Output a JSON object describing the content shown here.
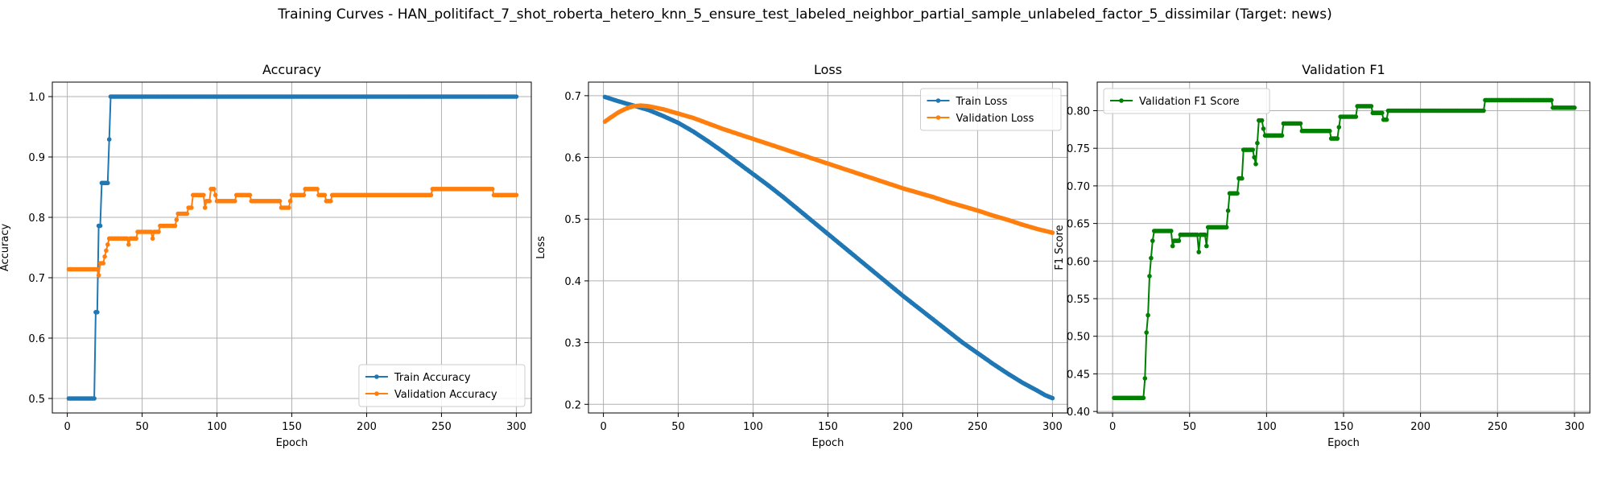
{
  "suptitle": "Training Curves - HAN_politifact_7_shot_roberta_hetero_knn_5_ensure_test_labeled_neighbor_partial_sample_unlabeled_factor_5_dissimilar (Target: news)",
  "chart_data": [
    {
      "type": "line",
      "title": "Accuracy",
      "xlabel": "Epoch",
      "ylabel": "Accuracy",
      "xlim": [
        -10,
        310
      ],
      "ylim": [
        0.476,
        1.024
      ],
      "xticks": [
        0,
        50,
        100,
        150,
        200,
        250,
        300
      ],
      "yticks": [
        0.5,
        0.6,
        0.7,
        0.8,
        0.9,
        1.0
      ],
      "grid": true,
      "legend": "lower-right",
      "series": [
        {
          "name": "Train Accuracy",
          "color": "#1f77b4",
          "points": [
            [
              1,
              0.5
            ],
            [
              18,
              0.5
            ],
            [
              19,
              0.643
            ],
            [
              20,
              0.643
            ],
            [
              21,
              0.786
            ],
            [
              22,
              0.786
            ],
            [
              23,
              0.857
            ],
            [
              27,
              0.857
            ],
            [
              28,
              0.929
            ],
            [
              29,
              1.0
            ],
            [
              300,
              1.0
            ]
          ]
        },
        {
          "name": "Validation Accuracy",
          "color": "#ff7f0e",
          "points": [
            [
              1,
              0.714
            ],
            [
              19,
              0.714
            ],
            [
              20,
              0.714
            ],
            [
              21,
              0.704
            ],
            [
              22,
              0.724
            ],
            [
              24,
              0.724
            ],
            [
              25,
              0.735
            ],
            [
              26,
              0.745
            ],
            [
              27,
              0.755
            ],
            [
              28,
              0.765
            ],
            [
              40,
              0.765
            ],
            [
              41,
              0.755
            ],
            [
              42,
              0.765
            ],
            [
              46,
              0.765
            ],
            [
              47,
              0.776
            ],
            [
              56,
              0.776
            ],
            [
              57,
              0.765
            ],
            [
              58,
              0.776
            ],
            [
              61,
              0.776
            ],
            [
              62,
              0.786
            ],
            [
              72,
              0.786
            ],
            [
              73,
              0.796
            ],
            [
              74,
              0.806
            ],
            [
              80,
              0.806
            ],
            [
              81,
              0.816
            ],
            [
              83,
              0.816
            ],
            [
              84,
              0.837
            ],
            [
              91,
              0.837
            ],
            [
              92,
              0.816
            ],
            [
              93,
              0.827
            ],
            [
              95,
              0.827
            ],
            [
              96,
              0.847
            ],
            [
              98,
              0.847
            ],
            [
              99,
              0.837
            ],
            [
              100,
              0.827
            ],
            [
              112,
              0.827
            ],
            [
              113,
              0.837
            ],
            [
              122,
              0.837
            ],
            [
              123,
              0.827
            ],
            [
              142,
              0.827
            ],
            [
              143,
              0.816
            ],
            [
              148,
              0.816
            ],
            [
              149,
              0.827
            ],
            [
              150,
              0.837
            ],
            [
              158,
              0.837
            ],
            [
              159,
              0.847
            ],
            [
              167,
              0.847
            ],
            [
              168,
              0.837
            ],
            [
              172,
              0.837
            ],
            [
              173,
              0.827
            ],
            [
              176,
              0.827
            ],
            [
              177,
              0.837
            ],
            [
              243,
              0.837
            ],
            [
              244,
              0.847
            ],
            [
              284,
              0.847
            ],
            [
              285,
              0.837
            ],
            [
              300,
              0.837
            ]
          ]
        }
      ]
    },
    {
      "type": "line",
      "title": "Loss",
      "xlabel": "Epoch",
      "ylabel": "Loss",
      "xlim": [
        -10,
        310
      ],
      "ylim": [
        0.186,
        0.722
      ],
      "xticks": [
        0,
        50,
        100,
        150,
        200,
        250,
        300
      ],
      "yticks": [
        0.2,
        0.3,
        0.4,
        0.5,
        0.6,
        0.7
      ],
      "grid": true,
      "legend": "top-right",
      "series": [
        {
          "name": "Train Loss",
          "color": "#1f77b4",
          "points": [
            [
              1,
              0.698
            ],
            [
              10,
              0.691
            ],
            [
              20,
              0.684
            ],
            [
              30,
              0.677
            ],
            [
              40,
              0.667
            ],
            [
              50,
              0.656
            ],
            [
              60,
              0.642
            ],
            [
              70,
              0.626
            ],
            [
              80,
              0.609
            ],
            [
              90,
              0.591
            ],
            [
              100,
              0.573
            ],
            [
              110,
              0.555
            ],
            [
              120,
              0.536
            ],
            [
              130,
              0.516
            ],
            [
              140,
              0.496
            ],
            [
              150,
              0.476
            ],
            [
              160,
              0.456
            ],
            [
              170,
              0.436
            ],
            [
              180,
              0.416
            ],
            [
              190,
              0.396
            ],
            [
              200,
              0.376
            ],
            [
              210,
              0.357
            ],
            [
              220,
              0.338
            ],
            [
              230,
              0.319
            ],
            [
              240,
              0.3
            ],
            [
              250,
              0.283
            ],
            [
              260,
              0.266
            ],
            [
              270,
              0.25
            ],
            [
              280,
              0.235
            ],
            [
              290,
              0.222
            ],
            [
              295,
              0.215
            ],
            [
              300,
              0.21
            ]
          ]
        },
        {
          "name": "Validation Loss",
          "color": "#ff7f0e",
          "points": [
            [
              1,
              0.658
            ],
            [
              5,
              0.665
            ],
            [
              10,
              0.673
            ],
            [
              15,
              0.679
            ],
            [
              20,
              0.683
            ],
            [
              25,
              0.684
            ],
            [
              30,
              0.683
            ],
            [
              40,
              0.678
            ],
            [
              50,
              0.671
            ],
            [
              60,
              0.664
            ],
            [
              70,
              0.655
            ],
            [
              80,
              0.646
            ],
            [
              90,
              0.638
            ],
            [
              100,
              0.63
            ],
            [
              110,
              0.622
            ],
            [
              120,
              0.614
            ],
            [
              130,
              0.606
            ],
            [
              140,
              0.598
            ],
            [
              150,
              0.59
            ],
            [
              160,
              0.582
            ],
            [
              170,
              0.574
            ],
            [
              180,
              0.566
            ],
            [
              190,
              0.558
            ],
            [
              200,
              0.55
            ],
            [
              210,
              0.543
            ],
            [
              220,
              0.536
            ],
            [
              230,
              0.528
            ],
            [
              240,
              0.521
            ],
            [
              250,
              0.514
            ],
            [
              260,
              0.506
            ],
            [
              270,
              0.499
            ],
            [
              280,
              0.491
            ],
            [
              290,
              0.484
            ],
            [
              300,
              0.478
            ]
          ]
        }
      ]
    },
    {
      "type": "line",
      "title": "Validation F1",
      "xlabel": "Epoch",
      "ylabel": "F1 Score",
      "xlim": [
        -10,
        310
      ],
      "ylim": [
        0.398,
        0.838
      ],
      "xticks": [
        0,
        50,
        100,
        150,
        200,
        250,
        300
      ],
      "yticks": [
        0.4,
        0.45,
        0.5,
        0.55,
        0.6,
        0.65,
        0.7,
        0.75,
        0.8
      ],
      "grid": true,
      "legend": "top-left",
      "series": [
        {
          "name": "Validation F1 Score",
          "color": "#008000",
          "points": [
            [
              1,
              0.418
            ],
            [
              19,
              0.418
            ],
            [
              20,
              0.418
            ],
            [
              21,
              0.444
            ],
            [
              22,
              0.505
            ],
            [
              23,
              0.528
            ],
            [
              24,
              0.58
            ],
            [
              25,
              0.604
            ],
            [
              26,
              0.627
            ],
            [
              27,
              0.64
            ],
            [
              38,
              0.64
            ],
            [
              39,
              0.62
            ],
            [
              40,
              0.627
            ],
            [
              43,
              0.627
            ],
            [
              44,
              0.635
            ],
            [
              55,
              0.635
            ],
            [
              56,
              0.612
            ],
            [
              57,
              0.635
            ],
            [
              60,
              0.635
            ],
            [
              61,
              0.62
            ],
            [
              62,
              0.645
            ],
            [
              74,
              0.645
            ],
            [
              75,
              0.667
            ],
            [
              76,
              0.69
            ],
            [
              81,
              0.69
            ],
            [
              82,
              0.71
            ],
            [
              84,
              0.71
            ],
            [
              85,
              0.748
            ],
            [
              91,
              0.748
            ],
            [
              92,
              0.738
            ],
            [
              93,
              0.729
            ],
            [
              94,
              0.757
            ],
            [
              95,
              0.787
            ],
            [
              97,
              0.787
            ],
            [
              98,
              0.776
            ],
            [
              99,
              0.767
            ],
            [
              110,
              0.767
            ],
            [
              111,
              0.783
            ],
            [
              122,
              0.783
            ],
            [
              123,
              0.773
            ],
            [
              141,
              0.773
            ],
            [
              142,
              0.763
            ],
            [
              146,
              0.763
            ],
            [
              147,
              0.778
            ],
            [
              148,
              0.792
            ],
            [
              158,
              0.792
            ],
            [
              159,
              0.806
            ],
            [
              168,
              0.806
            ],
            [
              169,
              0.797
            ],
            [
              175,
              0.797
            ],
            [
              176,
              0.788
            ],
            [
              178,
              0.788
            ],
            [
              179,
              0.8
            ],
            [
              241,
              0.8
            ],
            [
              242,
              0.814
            ],
            [
              285,
              0.814
            ],
            [
              286,
              0.804
            ],
            [
              300,
              0.804
            ]
          ]
        }
      ]
    }
  ]
}
